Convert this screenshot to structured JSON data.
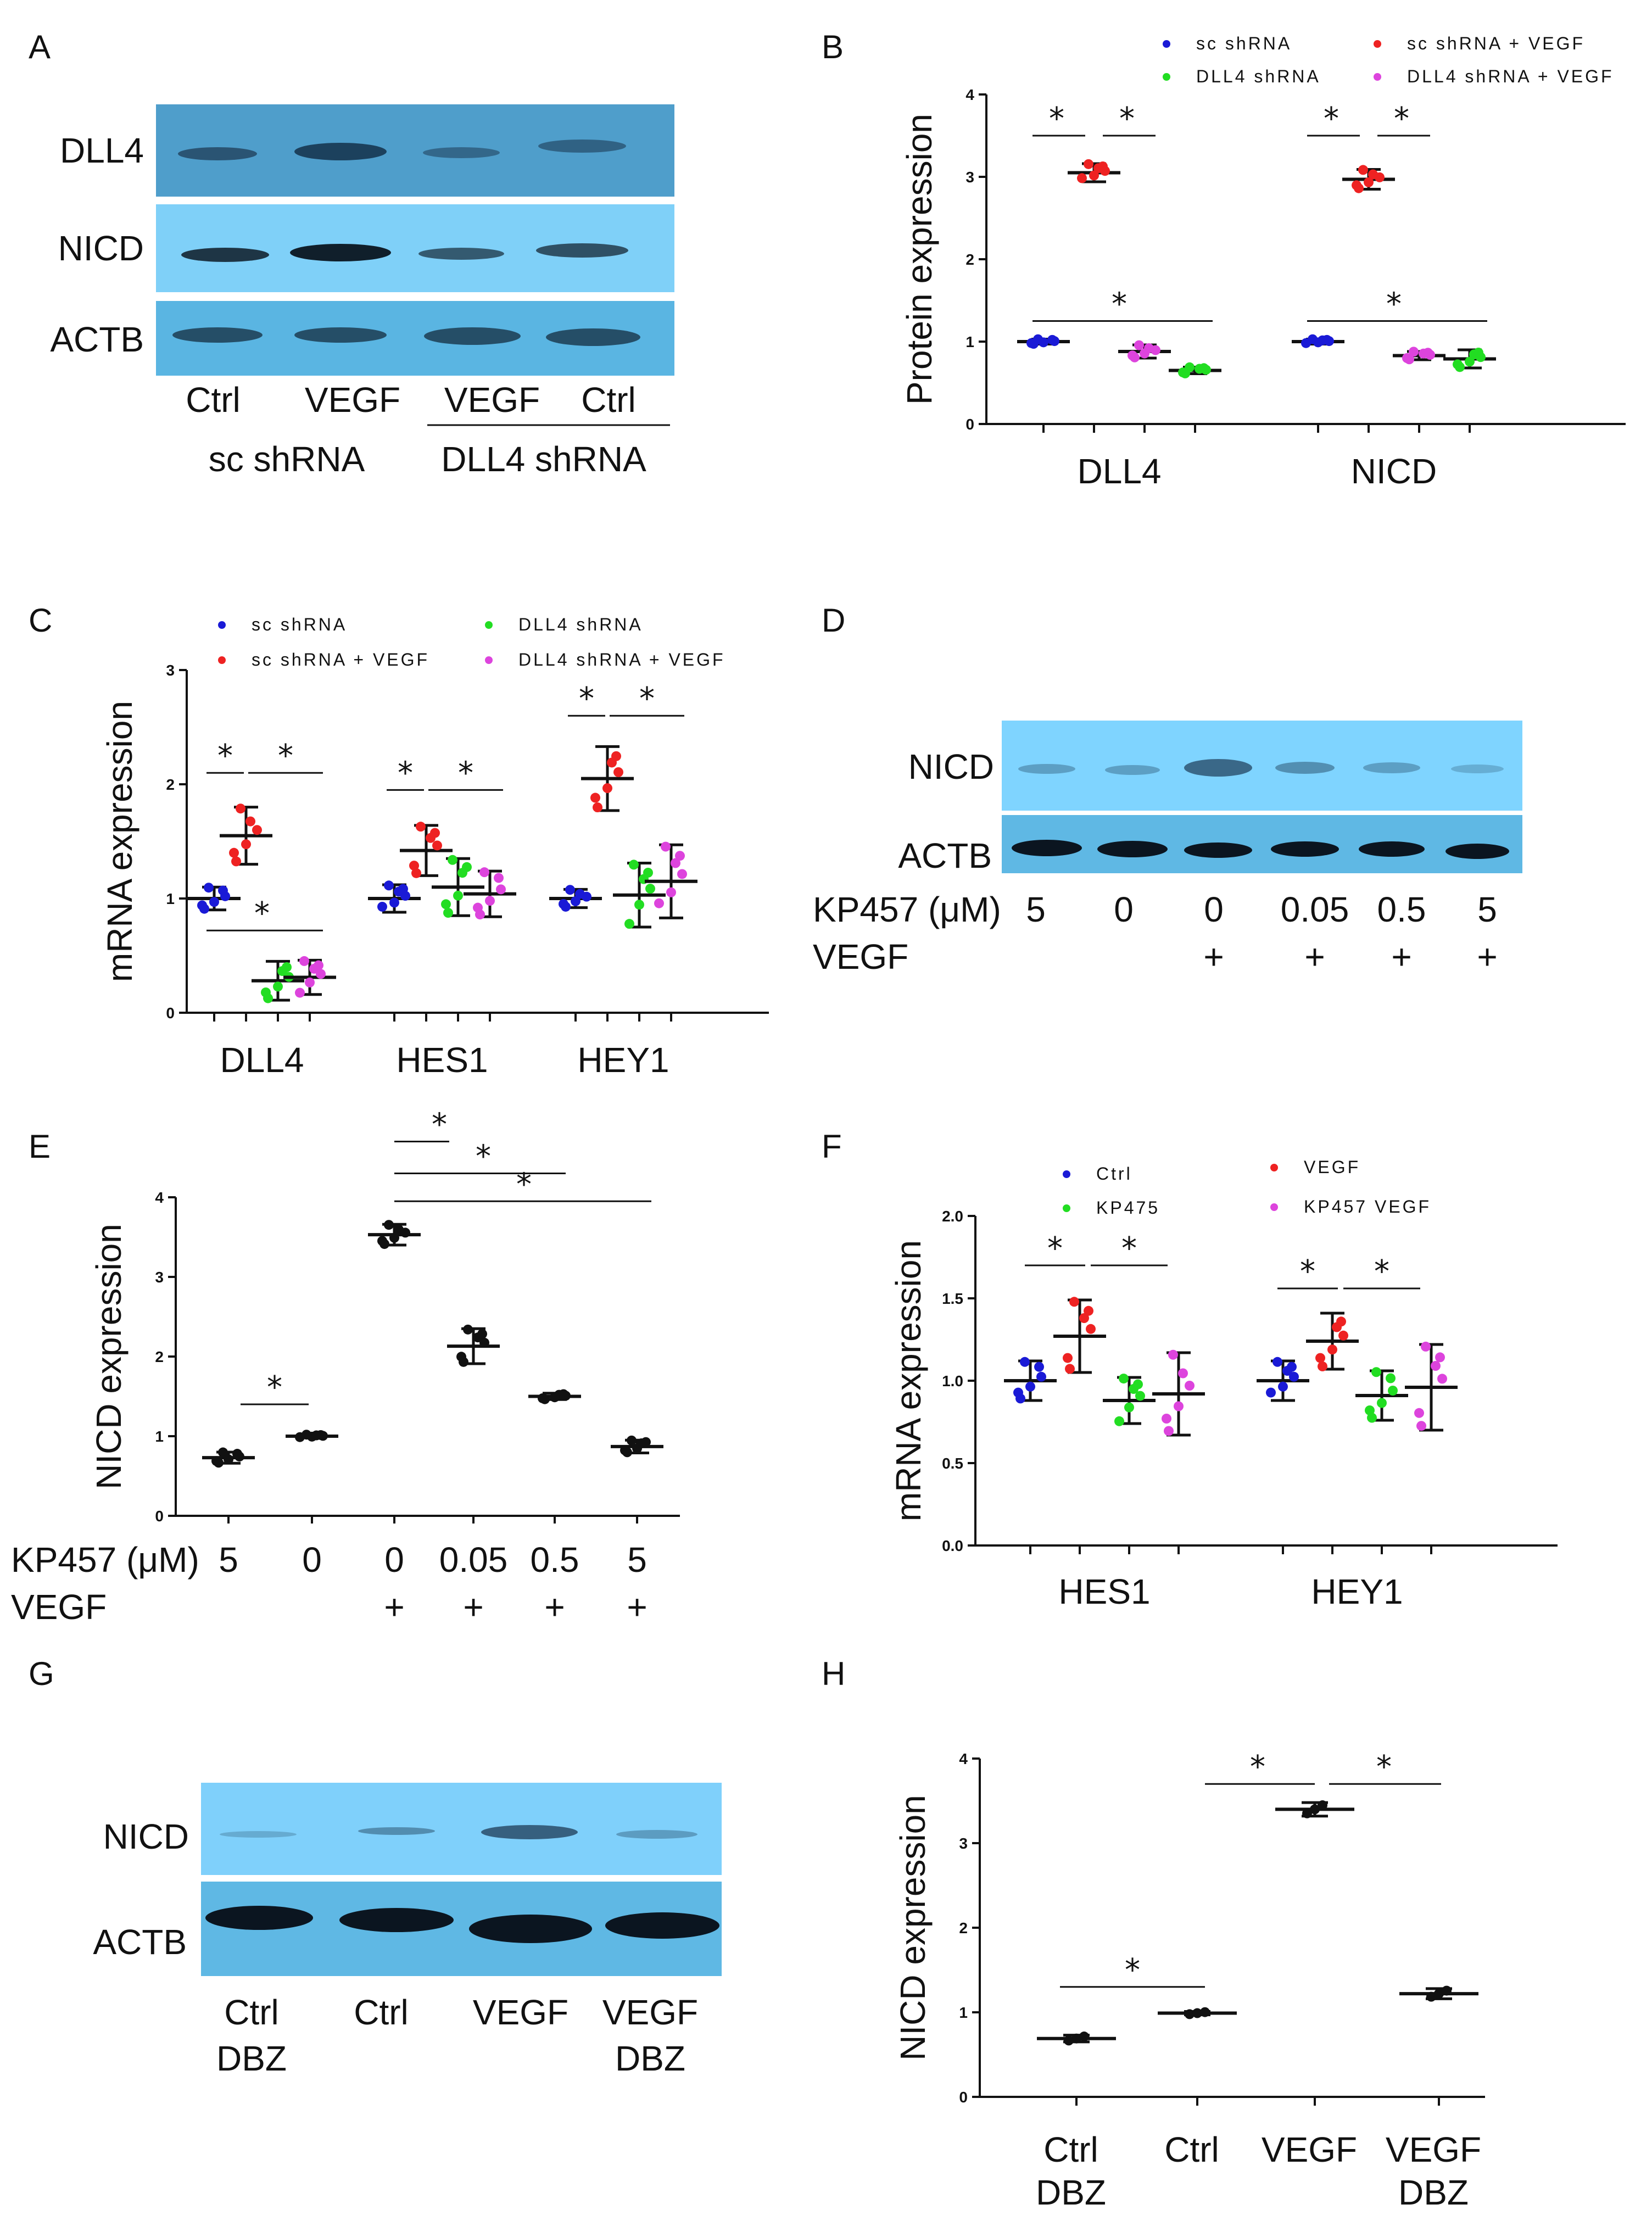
{
  "panel_labels": [
    "A",
    "B",
    "C",
    "D",
    "E",
    "F",
    "G",
    "H"
  ],
  "western_blots": {
    "A": {
      "rows": [
        "DLL4",
        "NICD",
        "ACTB"
      ],
      "lanes": [
        "Ctrl",
        "VEGF",
        "VEGF",
        "Ctrl"
      ],
      "groups": [
        "sc shRNA",
        "DLL4 shRNA"
      ]
    },
    "D": {
      "rows": [
        "NICD",
        "ACTB"
      ],
      "dose_label": "KP457 (μM)",
      "doses": [
        "5",
        "0",
        "0",
        "0.05",
        "0.5",
        "5"
      ],
      "vegf_label": "VEGF",
      "vegf": [
        "",
        "",
        "+",
        "+",
        "+",
        "+"
      ]
    },
    "G": {
      "rows": [
        "NICD",
        "ACTB"
      ],
      "lanes_line1": [
        "Ctrl",
        "Ctrl",
        "VEGF",
        "VEGF"
      ],
      "lanes_line2": [
        "DBZ",
        "",
        "",
        "DBZ"
      ]
    }
  },
  "colors": {
    "sc": "#1a1ad6",
    "sc_vegf": "#ee2222",
    "dll4": "#22dd22",
    "dll4_vegf": "#dd44dd",
    "blot_bg": "#5ab0dc",
    "blot_bg2": "#7fd0ff",
    "black": "#111111"
  },
  "chart_data": [
    {
      "panel": "B",
      "type": "scatter",
      "ylabel": "Protein expression",
      "ylim": [
        0,
        4
      ],
      "yticks": [
        "0",
        "1",
        "2",
        "3",
        "4"
      ],
      "categories": [
        "DLL4",
        "NICD"
      ],
      "legend": [
        "sc shRNA",
        "sc shRNA + VEGF",
        "DLL4 shRNA",
        "DLL4 shRNA + VEGF"
      ],
      "series": [
        {
          "name": "sc shRNA",
          "means": [
            1.0,
            1.0
          ],
          "sd": [
            0.03,
            0.03
          ]
        },
        {
          "name": "sc shRNA + VEGF",
          "means": [
            3.05,
            2.97
          ],
          "sd": [
            0.11,
            0.12
          ]
        },
        {
          "name": "DLL4 shRNA + VEGF",
          "means": [
            0.88,
            0.83
          ],
          "sd": [
            0.08,
            0.05
          ]
        },
        {
          "name": "DLL4 shRNA",
          "means": [
            0.65,
            0.79
          ],
          "sd": [
            0.04,
            0.11
          ]
        }
      ],
      "significance": [
        "*",
        "*",
        "*",
        "*",
        "*",
        "*"
      ]
    },
    {
      "panel": "C",
      "type": "scatter",
      "ylabel": "mRNA expression",
      "ylim": [
        0,
        3
      ],
      "yticks": [
        "0",
        "1",
        "2",
        "3"
      ],
      "categories": [
        "DLL4",
        "HES1",
        "HEY1"
      ],
      "legend": [
        "sc shRNA",
        "sc shRNA + VEGF",
        "DLL4 shRNA",
        "DLL4 shRNA + VEGF"
      ],
      "series": [
        {
          "name": "sc shRNA",
          "means": [
            1.0,
            1.0,
            1.0
          ],
          "sd": [
            0.1,
            0.12,
            0.08
          ]
        },
        {
          "name": "sc shRNA + VEGF",
          "means": [
            1.55,
            1.42,
            2.05
          ],
          "sd": [
            0.25,
            0.22,
            0.28
          ]
        },
        {
          "name": "DLL4 shRNA",
          "means": [
            0.28,
            1.1,
            1.03
          ],
          "sd": [
            0.17,
            0.25,
            0.28
          ]
        },
        {
          "name": "DLL4 shRNA + VEGF",
          "means": [
            0.31,
            1.04,
            1.15
          ],
          "sd": [
            0.15,
            0.2,
            0.32
          ]
        }
      ],
      "significance": [
        "*",
        "*",
        "*",
        "*",
        "*",
        "*",
        "*"
      ]
    },
    {
      "panel": "E",
      "type": "scatter",
      "ylabel": "NICD expression",
      "ylim": [
        0,
        4
      ],
      "yticks": [
        "0",
        "1",
        "2",
        "3",
        "4"
      ],
      "dose_label": "KP457 (μM)",
      "doses": [
        "5",
        "0",
        "0",
        "0.05",
        "0.5",
        "5"
      ],
      "vegf_label": "VEGF",
      "vegf": [
        "",
        "",
        "+",
        "+",
        "+",
        "+"
      ],
      "means": [
        0.73,
        1.0,
        3.53,
        2.13,
        1.5,
        0.87
      ],
      "sd": [
        0.07,
        0.02,
        0.13,
        0.22,
        0.04,
        0.08
      ],
      "significance": [
        "*",
        "*",
        "*",
        "*"
      ]
    },
    {
      "panel": "F",
      "type": "scatter",
      "ylabel": "mRNA expression",
      "ylim": [
        0,
        2
      ],
      "yticks": [
        "0.0",
        "0.5",
        "1.0",
        "1.5",
        "2.0"
      ],
      "categories": [
        "HES1",
        "HEY1"
      ],
      "legend": [
        "Ctrl",
        "VEGF",
        "KP475",
        "KP457 VEGF"
      ],
      "series": [
        {
          "name": "Ctrl",
          "means": [
            1.0,
            1.0
          ],
          "sd": [
            0.12,
            0.12
          ]
        },
        {
          "name": "VEGF",
          "means": [
            1.27,
            1.24
          ],
          "sd": [
            0.22,
            0.17
          ]
        },
        {
          "name": "KP475",
          "means": [
            0.88,
            0.91
          ],
          "sd": [
            0.14,
            0.15
          ]
        },
        {
          "name": "KP457 VEGF",
          "means": [
            0.92,
            0.96
          ],
          "sd": [
            0.25,
            0.26
          ]
        }
      ],
      "significance": [
        "*",
        "*",
        "*",
        "*"
      ]
    },
    {
      "panel": "H",
      "type": "scatter",
      "ylabel": "NICD expression",
      "ylim": [
        0,
        4
      ],
      "yticks": [
        "0",
        "1",
        "2",
        "3",
        "4"
      ],
      "categories_line1": [
        "Ctrl",
        "Ctrl",
        "VEGF",
        "VEGF"
      ],
      "categories_line2": [
        "DBZ",
        "",
        "",
        "DBZ"
      ],
      "means": [
        0.69,
        0.99,
        3.4,
        1.22
      ],
      "sd": [
        0.04,
        0.02,
        0.08,
        0.06
      ],
      "significance": [
        "*",
        "*",
        "*"
      ]
    }
  ]
}
